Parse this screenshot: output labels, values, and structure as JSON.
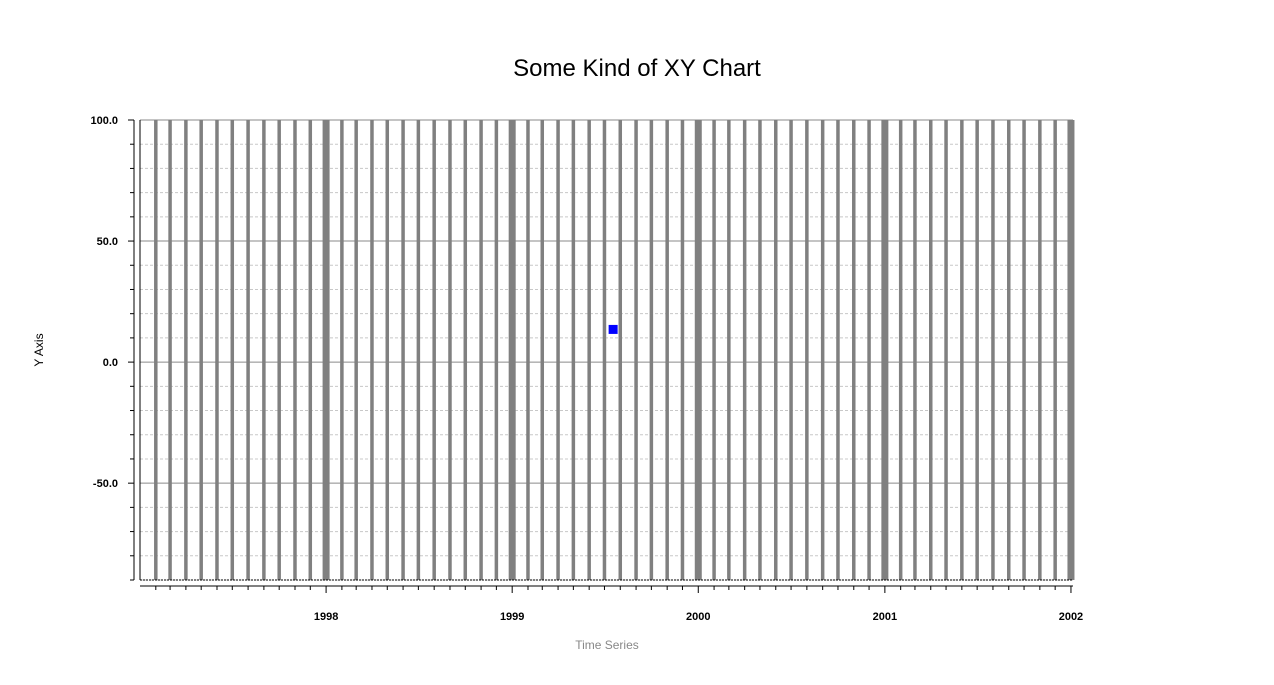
{
  "chart_data": {
    "type": "scatter",
    "title": "Some Kind of XY Chart",
    "xlabel": "Time Series",
    "ylabel": "Y Axis",
    "x_axis": {
      "type": "date",
      "range": [
        "1997-01-01",
        "2002-01-05"
      ],
      "tick_labels": [
        {
          "label": "1998",
          "value": "1998-01-01"
        },
        {
          "label": "1999",
          "value": "1999-01-01"
        },
        {
          "label": "2000",
          "value": "2000-01-01"
        },
        {
          "label": "2001",
          "value": "2001-01-01"
        },
        {
          "label": "2002",
          "value": "2002-01-01"
        }
      ],
      "minor_ticks": "monthly"
    },
    "y_axis": {
      "range": [
        -90,
        100
      ],
      "tick_labels": [
        "100.0",
        "50.0",
        "0.0",
        "-50.0"
      ],
      "tick_values": [
        100,
        50,
        0,
        -50
      ],
      "minor_tick_step": 10
    },
    "grid": true,
    "legend": "none",
    "series": [
      {
        "color": "#0000ff",
        "marker": "square",
        "points": [
          {
            "x": "1999-07-18",
            "y": 13.5
          }
        ]
      }
    ],
    "domain_markers": {
      "color": "#808080",
      "interval": "monthly",
      "from": "1997-02-01",
      "to": "2002-01-01"
    }
  }
}
